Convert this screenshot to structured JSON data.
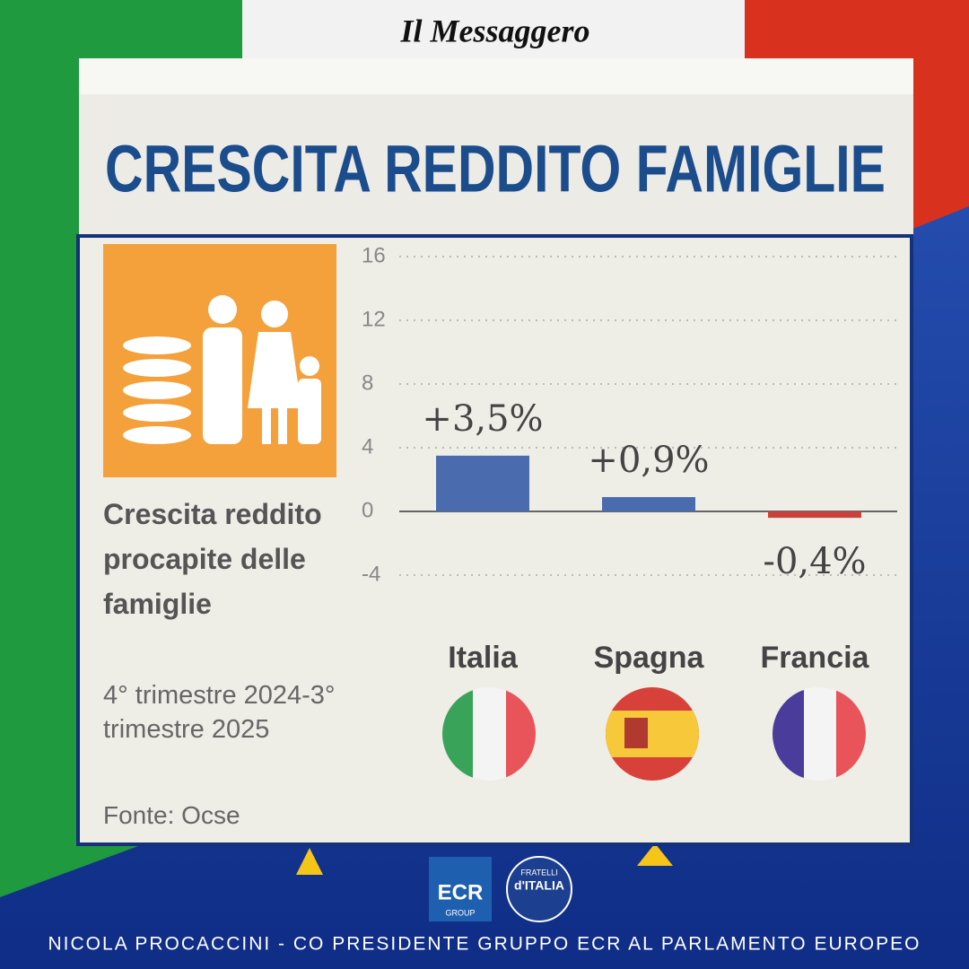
{
  "header": {
    "brand": "Il Messaggero",
    "title": "CRESCITA REDDITO FAMIGLIE"
  },
  "chart_data": {
    "type": "bar",
    "subtitle": "Crescita reddito procapite delle famiglie",
    "period": "4° trimestre 2024-3° trimestre 2025",
    "source": "Fonte: Ocse",
    "categories": [
      "Italia",
      "Spagna",
      "Francia"
    ],
    "values": [
      3.5,
      0.9,
      -0.4
    ],
    "value_labels": [
      "+3,5%",
      "+0,9%",
      "-0,4%"
    ],
    "colors": [
      "#4a6cae",
      "#4a6cae",
      "#c9413a"
    ],
    "ylim": [
      -4,
      16
    ],
    "yticks": [
      -4,
      0,
      4,
      8,
      12,
      16
    ],
    "grid": true
  },
  "logos": {
    "ecr": "ECR",
    "ecr_sub": "GROUP",
    "fdi_top": "FRATELLI",
    "fdi_main": "d'ITALIA"
  },
  "footer": "NICOLA PROCACCINI - CO PRESIDENTE GRUPPO ECR AL PARLAMENTO EUROPEO"
}
